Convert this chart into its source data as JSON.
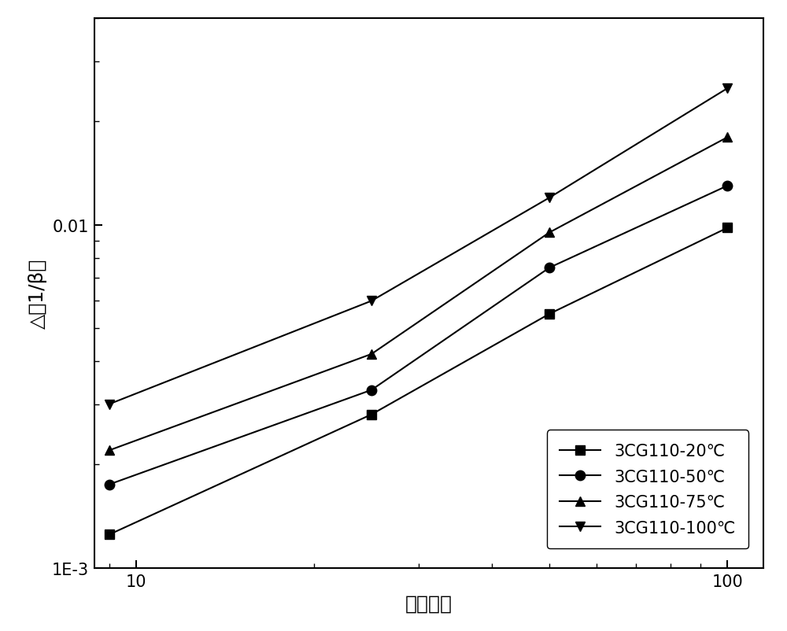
{
  "series": [
    {
      "label": "3CG110-20℃",
      "marker": "s",
      "x": [
        9,
        25,
        50,
        100
      ],
      "y": [
        0.00125,
        0.0028,
        0.0055,
        0.0098
      ]
    },
    {
      "label": "3CG110-50℃",
      "marker": "o",
      "x": [
        9,
        25,
        50,
        100
      ],
      "y": [
        0.00175,
        0.0033,
        0.0075,
        0.013
      ]
    },
    {
      "label": "3CG110-75℃",
      "marker": "^",
      "x": [
        9,
        25,
        50,
        100
      ],
      "y": [
        0.0022,
        0.0042,
        0.0095,
        0.018
      ]
    },
    {
      "label": "3CG110-100℃",
      "marker": "v",
      "x": [
        9,
        25,
        50,
        100
      ],
      "y": [
        0.003,
        0.006,
        0.012,
        0.025
      ]
    }
  ],
  "xlabel": "辐照注量",
  "ylabel": "△（1/β）",
  "xlim": [
    8.5,
    115
  ],
  "ylim": [
    0.001,
    0.04
  ],
  "color": "#000000",
  "linewidth": 1.5,
  "markersize": 9,
  "xlabel_fontsize": 18,
  "ylabel_fontsize": 18,
  "legend_fontsize": 15,
  "tick_fontsize": 15
}
